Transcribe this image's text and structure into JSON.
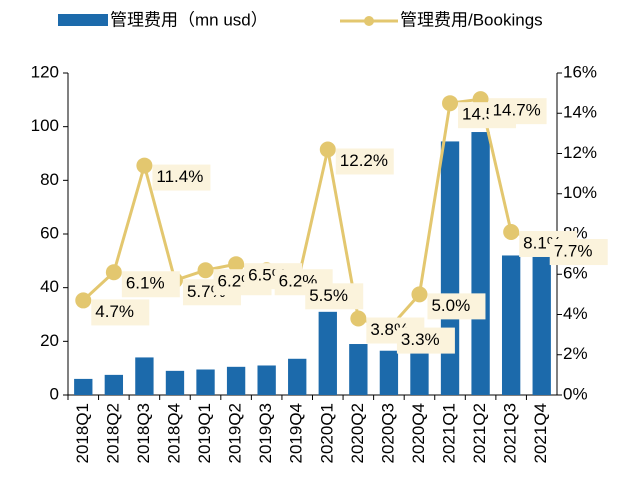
{
  "chart_data": {
    "type": "bar-line",
    "categories": [
      "2018Q1",
      "2018Q2",
      "2018Q3",
      "2018Q4",
      "2019Q1",
      "2019Q2",
      "2019Q3",
      "2019Q4",
      "2020Q1",
      "2020Q2",
      "2020Q3",
      "2020Q4",
      "2021Q1",
      "2021Q2",
      "2021Q3",
      "2021Q4"
    ],
    "series": [
      {
        "name": "管理费用（mn usd）",
        "color": "#1c6aab",
        "type": "bar",
        "values": [
          6,
          7.5,
          14,
          9,
          9.5,
          10.5,
          11,
          13.5,
          31,
          19,
          16.5,
          19,
          94.5,
          98,
          52,
          56
        ]
      },
      {
        "name": "管理费用/Bookings",
        "color": "#e3c76f",
        "type": "line",
        "axis": "y2",
        "values": [
          4.7,
          6.1,
          11.4,
          5.7,
          6.2,
          6.5,
          6.2,
          5.5,
          12.2,
          3.8,
          3.3,
          5.0,
          14.5,
          14.7,
          8.1,
          7.7
        ],
        "value_labels": [
          "4.7%",
          "6.1%",
          "11.4%",
          "5.7%",
          "6.2%",
          "6.5%",
          "6.2%",
          "5.5%",
          "12.2%",
          "3.8%",
          "3.3%",
          "5.0%",
          "14.5%",
          "14.7%",
          "8.1%",
          "7.7%"
        ]
      }
    ],
    "ylim": [
      0,
      120
    ],
    "yticks": [
      0,
      20,
      40,
      60,
      80,
      100,
      120
    ],
    "y2lim": [
      0,
      16
    ],
    "y2ticks": [
      {
        "value": 0,
        "label": "0%"
      },
      {
        "value": 2,
        "label": "2%"
      },
      {
        "value": 4,
        "label": "4%"
      },
      {
        "value": 6,
        "label": "6%"
      },
      {
        "value": 8,
        "label": "8%"
      },
      {
        "value": 10,
        "label": "10%"
      },
      {
        "value": 12,
        "label": "12%"
      },
      {
        "value": 14,
        "label": "14%"
      },
      {
        "value": 16,
        "label": "16%"
      }
    ],
    "legend": "top",
    "grid": false
  }
}
